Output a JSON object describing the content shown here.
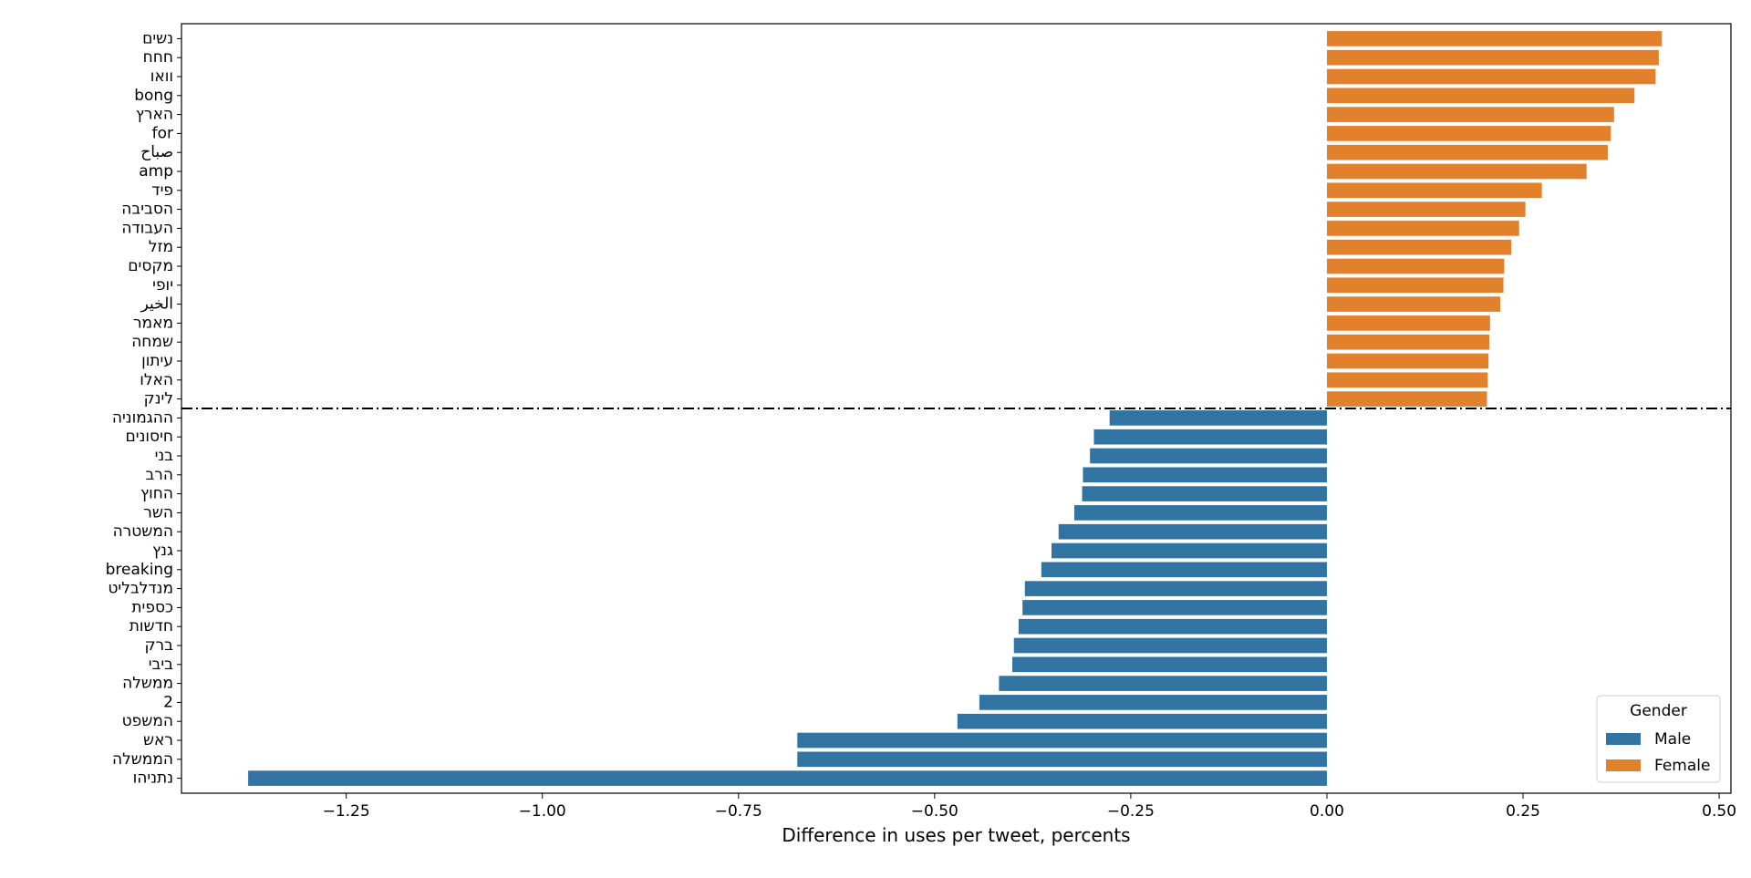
{
  "chart_data": {
    "type": "bar",
    "orientation": "horizontal",
    "xlabel": "Difference in uses per tweet, percents",
    "ylabel": "",
    "xlim": [
      -1.46,
      0.515
    ],
    "xticks": [
      -1.25,
      -1.0,
      -0.75,
      -0.5,
      -0.25,
      0.0,
      0.25,
      0.5
    ],
    "xtick_labels": [
      "−1.25",
      "−1.00",
      "−0.75",
      "−0.50",
      "−0.25",
      "0.00",
      "0.25",
      "0.50"
    ],
    "grid": false,
    "separator_line_after_index": 19,
    "legend": {
      "title": "Gender",
      "placement": "lower-right",
      "entries": [
        {
          "name": "Male",
          "color": "#3274a1"
        },
        {
          "name": "Female",
          "color": "#e1812c"
        }
      ]
    },
    "categories": [
      "נשים",
      "חחח",
      "וואו",
      "bong",
      "הארץ",
      "for",
      "صباح",
      "amp",
      "פיד",
      "הסביבה",
      "העבודה",
      "מזל",
      "מקסים",
      "יופי",
      "الخير",
      "מאמר",
      "שמחה",
      "עיתון",
      "האלו",
      "לינק",
      "ההגמוניה",
      "חיסונים",
      "בני",
      "הרב",
      "החוץ",
      "השר",
      "המשטרה",
      "גנץ",
      "breaking",
      "מנדלבליט",
      "כספית",
      "חדשות",
      "ברק",
      "ביבי",
      "ממשלה",
      "2",
      "המשפט",
      "ראש",
      "הממשלה",
      "נתניהו"
    ],
    "values": [
      0.427,
      0.423,
      0.419,
      0.392,
      0.366,
      0.362,
      0.358,
      0.331,
      0.274,
      0.253,
      0.245,
      0.235,
      0.226,
      0.225,
      0.221,
      0.208,
      0.207,
      0.206,
      0.205,
      0.204,
      -0.277,
      -0.297,
      -0.302,
      -0.311,
      -0.312,
      -0.322,
      -0.342,
      -0.351,
      -0.364,
      -0.385,
      -0.388,
      -0.393,
      -0.399,
      -0.401,
      -0.418,
      -0.443,
      -0.471,
      -0.675,
      -0.675,
      -1.375
    ],
    "series_colors": {
      "Male": "#3274a1",
      "Female": "#e1812c"
    }
  }
}
